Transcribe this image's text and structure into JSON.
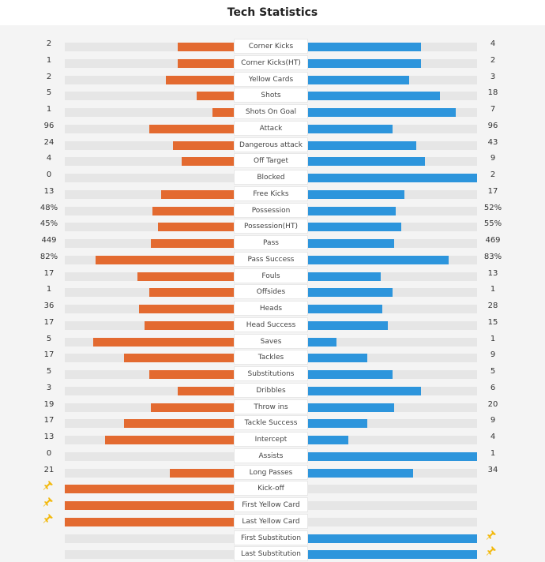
{
  "header": {
    "title": "Tech Statistics"
  },
  "colors": {
    "home": "#e36a30",
    "away": "#2d95dc",
    "track": "#e6e6e6"
  },
  "stats": [
    {
      "label": "Corner Kicks",
      "home": "2",
      "away": "4",
      "home_fill": 0.33,
      "away_fill": 0.67
    },
    {
      "label": "Corner Kicks(HT)",
      "home": "1",
      "away": "2",
      "home_fill": 0.33,
      "away_fill": 0.67
    },
    {
      "label": "Yellow Cards",
      "home": "2",
      "away": "3",
      "home_fill": 0.4,
      "away_fill": 0.6
    },
    {
      "label": "Shots",
      "home": "5",
      "away": "18",
      "home_fill": 0.22,
      "away_fill": 0.78
    },
    {
      "label": "Shots On Goal",
      "home": "1",
      "away": "7",
      "home_fill": 0.125,
      "away_fill": 0.875
    },
    {
      "label": "Attack",
      "home": "96",
      "away": "96",
      "home_fill": 0.5,
      "away_fill": 0.5
    },
    {
      "label": "Dangerous attack",
      "home": "24",
      "away": "43",
      "home_fill": 0.36,
      "away_fill": 0.64
    },
    {
      "label": "Off Target",
      "home": "4",
      "away": "9",
      "home_fill": 0.31,
      "away_fill": 0.69
    },
    {
      "label": "Blocked",
      "home": "0",
      "away": "2",
      "home_fill": 0.0,
      "away_fill": 1.0
    },
    {
      "label": "Free Kicks",
      "home": "13",
      "away": "17",
      "home_fill": 0.43,
      "away_fill": 0.57
    },
    {
      "label": "Possession",
      "home": "48%",
      "away": "52%",
      "home_fill": 0.48,
      "away_fill": 0.52
    },
    {
      "label": "Possession(HT)",
      "home": "45%",
      "away": "55%",
      "home_fill": 0.45,
      "away_fill": 0.55
    },
    {
      "label": "Pass",
      "home": "449",
      "away": "469",
      "home_fill": 0.49,
      "away_fill": 0.51
    },
    {
      "label": "Pass Success",
      "home": "82%",
      "away": "83%",
      "home_fill": 0.82,
      "away_fill": 0.83
    },
    {
      "label": "Fouls",
      "home": "17",
      "away": "13",
      "home_fill": 0.57,
      "away_fill": 0.43
    },
    {
      "label": "Offsides",
      "home": "1",
      "away": "1",
      "home_fill": 0.5,
      "away_fill": 0.5
    },
    {
      "label": "Heads",
      "home": "36",
      "away": "28",
      "home_fill": 0.56,
      "away_fill": 0.44
    },
    {
      "label": "Head Success",
      "home": "17",
      "away": "15",
      "home_fill": 0.53,
      "away_fill": 0.47
    },
    {
      "label": "Saves",
      "home": "5",
      "away": "1",
      "home_fill": 0.83,
      "away_fill": 0.17
    },
    {
      "label": "Tackles",
      "home": "17",
      "away": "9",
      "home_fill": 0.65,
      "away_fill": 0.35
    },
    {
      "label": "Substitutions",
      "home": "5",
      "away": "5",
      "home_fill": 0.5,
      "away_fill": 0.5
    },
    {
      "label": "Dribbles",
      "home": "3",
      "away": "6",
      "home_fill": 0.33,
      "away_fill": 0.67
    },
    {
      "label": "Throw ins",
      "home": "19",
      "away": "20",
      "home_fill": 0.49,
      "away_fill": 0.51
    },
    {
      "label": "Tackle Success",
      "home": "17",
      "away": "9",
      "home_fill": 0.65,
      "away_fill": 0.35
    },
    {
      "label": "Intercept",
      "home": "13",
      "away": "4",
      "home_fill": 0.76,
      "away_fill": 0.24
    },
    {
      "label": "Assists",
      "home": "0",
      "away": "1",
      "home_fill": 0.0,
      "away_fill": 1.0
    },
    {
      "label": "Long Passes",
      "home": "21",
      "away": "34",
      "home_fill": 0.38,
      "away_fill": 0.62
    },
    {
      "label": "Kick-off",
      "home": "",
      "away": "",
      "home_fill": 1.0,
      "away_fill": 0.0,
      "pin": "home"
    },
    {
      "label": "First Yellow Card",
      "home": "",
      "away": "",
      "home_fill": 1.0,
      "away_fill": 0.0,
      "pin": "home"
    },
    {
      "label": "Last Yellow Card",
      "home": "",
      "away": "",
      "home_fill": 1.0,
      "away_fill": 0.0,
      "pin": "home"
    },
    {
      "label": "First Substitution",
      "home": "",
      "away": "",
      "home_fill": 0.0,
      "away_fill": 1.0,
      "pin": "away"
    },
    {
      "label": "Last Substitution",
      "home": "",
      "away": "",
      "home_fill": 0.0,
      "away_fill": 1.0,
      "pin": "away"
    }
  ]
}
